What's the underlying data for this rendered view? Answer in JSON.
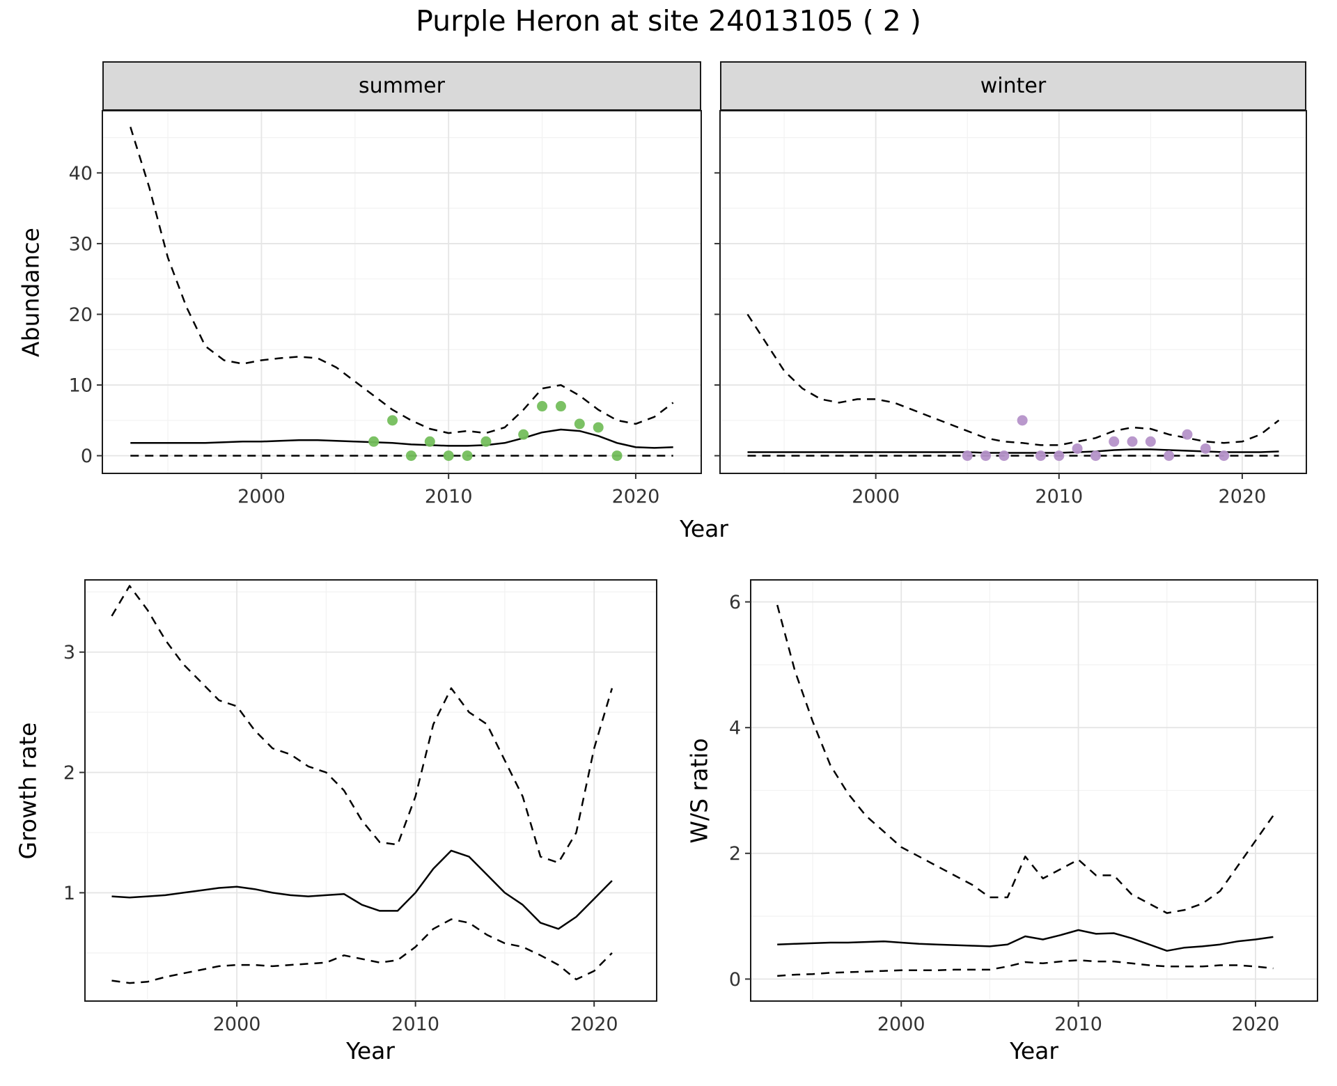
{
  "title": "Purple Heron at site 24013105 ( 2 )",
  "chart_data": {
    "type": "line",
    "title": "Purple Heron at site 24013105 ( 2 )",
    "facets": [
      {
        "label": "summer"
      },
      {
        "label": "winter"
      }
    ],
    "colors": {
      "line": "#000000",
      "summer_points": "#74BE5C",
      "winter_points": "#B592C9",
      "strip_bg": "#D9D9D9",
      "grid_major": "#E5E5E5",
      "grid_minor": "#F2F2F2"
    },
    "panels": [
      {
        "id": "abundance-summer",
        "facet": "summer",
        "xlabel": "Year",
        "ylabel": "Abundance",
        "xlim": [
          1991.5,
          2023.5
        ],
        "ylim": [
          -2.5,
          48.8
        ],
        "xticks": [
          2000,
          2010,
          2020
        ],
        "yticks": [
          0,
          10,
          20,
          30,
          40
        ],
        "x": [
          1993,
          1994,
          1995,
          1996,
          1997,
          1998,
          1999,
          2000,
          2001,
          2002,
          2003,
          2004,
          2005,
          2006,
          2007,
          2008,
          2009,
          2010,
          2011,
          2012,
          2013,
          2014,
          2015,
          2016,
          2017,
          2018,
          2019,
          2020,
          2021,
          2022
        ],
        "series": [
          {
            "name": "upper-95ci",
            "style": "dashed",
            "values": [
              46.5,
              38,
              28,
              21,
              15.5,
              13.5,
              13,
              13.5,
              13.8,
              14,
              13.8,
              12.5,
              10.5,
              8.5,
              6.5,
              5,
              3.8,
              3.2,
              3.5,
              3.2,
              4,
              6.5,
              9.5,
              10,
              8.5,
              6.5,
              5,
              4.5,
              5.5,
              7.5
            ]
          },
          {
            "name": "median",
            "style": "solid",
            "values": [
              1.8,
              1.8,
              1.8,
              1.8,
              1.8,
              1.9,
              2.0,
              2.0,
              2.1,
              2.2,
              2.2,
              2.1,
              2.0,
              1.9,
              1.8,
              1.6,
              1.5,
              1.4,
              1.4,
              1.5,
              1.8,
              2.5,
              3.3,
              3.7,
              3.5,
              2.8,
              1.8,
              1.2,
              1.1,
              1.2
            ]
          },
          {
            "name": "lower-95ci",
            "style": "dashed",
            "values": [
              0,
              0,
              0,
              0,
              0,
              0,
              0,
              0,
              0,
              0,
              0,
              0,
              0,
              0,
              0,
              0,
              0,
              0,
              0,
              0,
              0,
              0,
              0,
              0,
              0,
              0,
              0,
              0,
              0,
              0
            ]
          }
        ],
        "observations": {
          "name": "summer-counts",
          "color": "#74BE5C",
          "x": [
            2006,
            2007,
            2008,
            2009,
            2010,
            2011,
            2012,
            2014,
            2015,
            2016,
            2017,
            2018,
            2019
          ],
          "y": [
            2,
            5,
            0,
            2,
            0,
            0,
            2,
            3,
            7,
            7,
            4.5,
            4,
            0
          ]
        }
      },
      {
        "id": "abundance-winter",
        "facet": "winter",
        "xlabel": "Year",
        "ylabel": "Abundance",
        "xlim": [
          1991.5,
          2023.5
        ],
        "ylim": [
          -2.5,
          48.8
        ],
        "xticks": [
          2000,
          2010,
          2020
        ],
        "yticks": [
          0,
          10,
          20,
          30,
          40
        ],
        "x": [
          1993,
          1994,
          1995,
          1996,
          1997,
          1998,
          1999,
          2000,
          2001,
          2002,
          2003,
          2004,
          2005,
          2006,
          2007,
          2008,
          2009,
          2010,
          2011,
          2012,
          2013,
          2014,
          2015,
          2016,
          2017,
          2018,
          2019,
          2020,
          2021,
          2022
        ],
        "series": [
          {
            "name": "upper-95ci",
            "style": "dashed",
            "values": [
              20,
              16,
              12,
              9.5,
              8,
              7.5,
              8,
              8,
              7.5,
              6.5,
              5.5,
              4.5,
              3.5,
              2.5,
              2,
              1.8,
              1.5,
              1.5,
              2,
              2.5,
              3.5,
              4,
              3.8,
              3,
              2.5,
              2,
              1.8,
              2,
              3,
              5
            ]
          },
          {
            "name": "median",
            "style": "solid",
            "values": [
              0.5,
              0.5,
              0.5,
              0.5,
              0.5,
              0.5,
              0.5,
              0.5,
              0.5,
              0.5,
              0.5,
              0.5,
              0.5,
              0.4,
              0.4,
              0.4,
              0.4,
              0.4,
              0.5,
              0.6,
              0.8,
              0.9,
              0.9,
              0.8,
              0.7,
              0.6,
              0.5,
              0.5,
              0.5,
              0.6
            ]
          },
          {
            "name": "lower-95ci",
            "style": "dashed",
            "values": [
              0,
              0,
              0,
              0,
              0,
              0,
              0,
              0,
              0,
              0,
              0,
              0,
              0,
              0,
              0,
              0,
              0,
              0,
              0,
              0,
              0,
              0,
              0,
              0,
              0,
              0,
              0,
              0,
              0,
              0
            ]
          }
        ],
        "observations": {
          "name": "winter-counts",
          "color": "#B592C9",
          "x": [
            2005,
            2006,
            2007,
            2008,
            2009,
            2010,
            2011,
            2012,
            2013,
            2014,
            2015,
            2016,
            2017,
            2018,
            2019
          ],
          "y": [
            0,
            0,
            0,
            5,
            0,
            0,
            1,
            0,
            2,
            2,
            2,
            0,
            3,
            1,
            0
          ]
        }
      },
      {
        "id": "growth-rate",
        "facet": null,
        "xlabel": "Year",
        "ylabel": "Growth rate",
        "xlim": [
          1991.5,
          2023.5
        ],
        "ylim": [
          0.1,
          3.6
        ],
        "xticks": [
          2000,
          2010,
          2020
        ],
        "yticks": [
          1,
          2,
          3
        ],
        "x": [
          1993,
          1994,
          1995,
          1996,
          1997,
          1998,
          1999,
          2000,
          2001,
          2002,
          2003,
          2004,
          2005,
          2006,
          2007,
          2008,
          2009,
          2010,
          2011,
          2012,
          2013,
          2014,
          2015,
          2016,
          2017,
          2018,
          2019,
          2020,
          2021
        ],
        "series": [
          {
            "name": "upper-95ci",
            "style": "dashed",
            "values": [
              3.3,
              3.55,
              3.35,
              3.1,
              2.9,
              2.75,
              2.6,
              2.55,
              2.35,
              2.2,
              2.15,
              2.05,
              2.0,
              1.85,
              1.6,
              1.42,
              1.4,
              1.8,
              2.4,
              2.7,
              2.5,
              2.4,
              2.1,
              1.8,
              1.3,
              1.25,
              1.5,
              2.2,
              2.7
            ]
          },
          {
            "name": "median",
            "style": "solid",
            "values": [
              0.97,
              0.96,
              0.97,
              0.98,
              1.0,
              1.02,
              1.04,
              1.05,
              1.03,
              1.0,
              0.98,
              0.97,
              0.98,
              0.99,
              0.9,
              0.85,
              0.85,
              1.0,
              1.2,
              1.35,
              1.3,
              1.15,
              1.0,
              0.9,
              0.75,
              0.7,
              0.8,
              0.95,
              1.1
            ]
          },
          {
            "name": "lower-95ci",
            "style": "dashed",
            "values": [
              0.27,
              0.25,
              0.26,
              0.3,
              0.33,
              0.36,
              0.39,
              0.4,
              0.4,
              0.39,
              0.4,
              0.41,
              0.42,
              0.48,
              0.45,
              0.42,
              0.44,
              0.55,
              0.7,
              0.78,
              0.75,
              0.65,
              0.58,
              0.55,
              0.48,
              0.4,
              0.28,
              0.35,
              0.5
            ]
          }
        ],
        "observations": null
      },
      {
        "id": "ws-ratio",
        "facet": null,
        "xlabel": "Year",
        "ylabel": "W/S ratio",
        "xlim": [
          1991.5,
          2023.5
        ],
        "ylim": [
          -0.35,
          6.35
        ],
        "xticks": [
          2000,
          2010,
          2020
        ],
        "yticks": [
          0,
          2,
          4,
          6
        ],
        "x": [
          1993,
          1994,
          1995,
          1996,
          1997,
          1998,
          1999,
          2000,
          2001,
          2002,
          2003,
          2004,
          2005,
          2006,
          2007,
          2008,
          2009,
          2010,
          2011,
          2012,
          2013,
          2014,
          2015,
          2016,
          2017,
          2018,
          2019,
          2020,
          2021
        ],
        "series": [
          {
            "name": "upper-95ci",
            "style": "dashed",
            "values": [
              5.95,
              4.9,
              4.1,
              3.4,
              2.95,
              2.6,
              2.35,
              2.1,
              1.95,
              1.8,
              1.65,
              1.5,
              1.3,
              1.3,
              1.95,
              1.6,
              1.75,
              1.9,
              1.65,
              1.65,
              1.35,
              1.2,
              1.05,
              1.1,
              1.2,
              1.4,
              1.8,
              2.2,
              2.6
            ]
          },
          {
            "name": "median",
            "style": "solid",
            "values": [
              0.55,
              0.56,
              0.57,
              0.58,
              0.58,
              0.59,
              0.6,
              0.58,
              0.56,
              0.55,
              0.54,
              0.53,
              0.52,
              0.55,
              0.68,
              0.63,
              0.7,
              0.78,
              0.72,
              0.73,
              0.65,
              0.55,
              0.45,
              0.5,
              0.52,
              0.55,
              0.6,
              0.63,
              0.67
            ]
          },
          {
            "name": "lower-95ci",
            "style": "dashed",
            "values": [
              0.05,
              0.07,
              0.08,
              0.1,
              0.11,
              0.12,
              0.13,
              0.14,
              0.14,
              0.14,
              0.15,
              0.15,
              0.15,
              0.2,
              0.27,
              0.25,
              0.28,
              0.3,
              0.28,
              0.28,
              0.25,
              0.22,
              0.2,
              0.2,
              0.2,
              0.22,
              0.22,
              0.2,
              0.17
            ]
          }
        ],
        "observations": null
      }
    ]
  }
}
